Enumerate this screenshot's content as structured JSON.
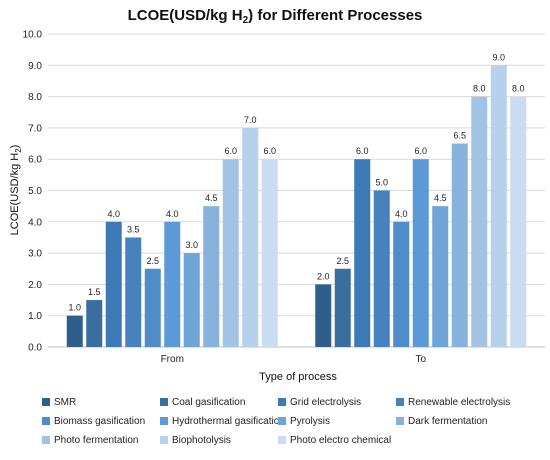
{
  "chart_data": {
    "type": "bar",
    "title_main": "LCOE(USD/kg H",
    "title_sub": "2",
    "title_end": ") for Different Processes",
    "xlabel": "Type of process",
    "ylabel_main": "LCOE(USD/kg H",
    "ylabel_sub": "2",
    "ylabel_end": ")",
    "categories": [
      "From",
      "To"
    ],
    "ylim": [
      0,
      10
    ],
    "y_ticks": [
      "0.0",
      "1.0",
      "2.0",
      "3.0",
      "4.0",
      "5.0",
      "6.0",
      "7.0",
      "8.0",
      "9.0",
      "10.0"
    ],
    "grid": "horizontal",
    "legend_position": "bottom",
    "series": [
      {
        "name": "SMR",
        "color": "#2e5f8a",
        "values": [
          1.0,
          2.0
        ],
        "labels": [
          "1.0",
          "2.0"
        ]
      },
      {
        "name": "Coal gasification",
        "color": "#3a6e9f",
        "values": [
          1.5,
          2.5
        ],
        "labels": [
          "1.5",
          "2.5"
        ]
      },
      {
        "name": "Grid electrolysis",
        "color": "#3d7ab5",
        "values": [
          4.0,
          6.0
        ],
        "labels": [
          "4.0",
          "6.0"
        ]
      },
      {
        "name": "Renewable electrolysis",
        "color": "#4682bd",
        "values": [
          3.5,
          5.0
        ],
        "labels": [
          "3.5",
          "5.0"
        ]
      },
      {
        "name": "Biomass gasification",
        "color": "#4f8cc8",
        "values": [
          2.5,
          4.0
        ],
        "labels": [
          "2.5",
          "4.0"
        ]
      },
      {
        "name": "Hydrothermal gasification",
        "color": "#5b9ad6",
        "values": [
          4.0,
          6.0
        ],
        "labels": [
          "4.0",
          "6.0"
        ]
      },
      {
        "name": "Pyrolysis",
        "color": "#6ea4d6",
        "values": [
          3.0,
          4.5
        ],
        "labels": [
          "3.0",
          "4.5"
        ]
      },
      {
        "name": "Dark fermentation",
        "color": "#86b2dd",
        "values": [
          4.5,
          6.5
        ],
        "labels": [
          "4.5",
          "6.5"
        ]
      },
      {
        "name": "Photo fermentation",
        "color": "#a3c3e5",
        "values": [
          6.0,
          8.0
        ],
        "labels": [
          "6.0",
          "8.0"
        ]
      },
      {
        "name": "Biophotolysis",
        "color": "#b7d0ec",
        "values": [
          7.0,
          9.0
        ],
        "labels": [
          "7.0",
          "9.0"
        ]
      },
      {
        "name": "Photo electro chemical",
        "color": "#c9dcf1",
        "values": [
          6.0,
          8.0
        ],
        "labels": [
          "6.0",
          "8.0"
        ]
      }
    ]
  }
}
